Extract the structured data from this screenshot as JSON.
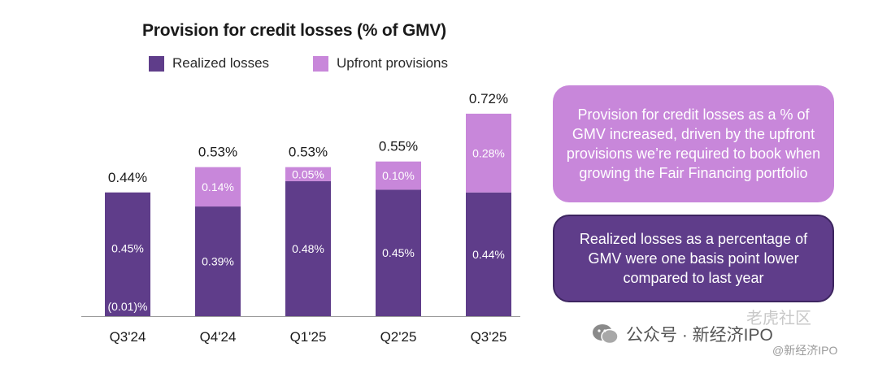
{
  "chart_data": {
    "type": "bar",
    "stacked": true,
    "title": "Provision for credit losses (% of GMV)",
    "categories": [
      "Q3'24",
      "Q4'24",
      "Q1'25",
      "Q2'25",
      "Q3'25"
    ],
    "series": [
      {
        "name": "Realized losses",
        "color": "#5f3d8a",
        "values": [
          0.45,
          0.39,
          0.48,
          0.45,
          0.44
        ],
        "labels": [
          "0.45%",
          "0.39%",
          "0.48%",
          "0.45%",
          "0.44%"
        ]
      },
      {
        "name": "Upfront provisions",
        "color": "#c887da",
        "values": [
          -0.01,
          0.14,
          0.05,
          0.1,
          0.28
        ],
        "labels": [
          "(0.01)%",
          "0.14%",
          "0.05%",
          "0.10%",
          "0.28%"
        ]
      }
    ],
    "totals": [
      0.44,
      0.53,
      0.53,
      0.55,
      0.72
    ],
    "total_labels": [
      "0.44%",
      "0.53%",
      "0.53%",
      "0.55%",
      "0.72%"
    ],
    "legend_position": "top",
    "grid": false
  },
  "callouts": {
    "upfront": "Provision for credit losses as a % of GMV increased, driven by the upfront provisions we’re required to book when growing the Fair Financing portfolio",
    "realized": "Realized losses as a percentage of GMV were one basis point lower compared to last year"
  },
  "watermark": {
    "main": "公众号 · 新经济IPO",
    "corner": "老虎社区",
    "sub": "@新经济IPO"
  }
}
